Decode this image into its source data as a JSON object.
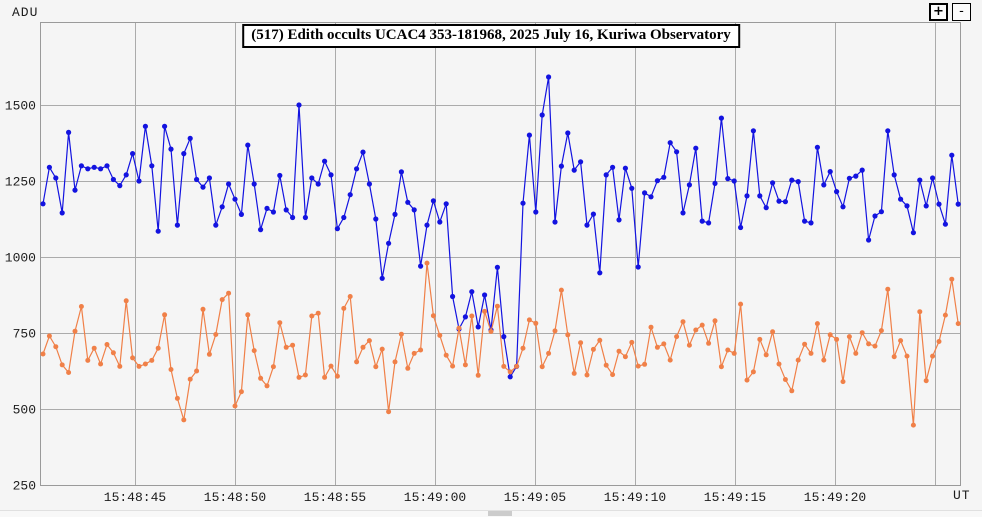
{
  "labels": {
    "y_unit": "ADU",
    "x_unit": "UT"
  },
  "controls": {
    "zoom_in": "+",
    "zoom_out": "-"
  },
  "ui_colors": {
    "background": "#f5f5f5",
    "grid": "#ababab",
    "plot_border": "#9a9a9a",
    "tick_text": "#1c1c1c",
    "title_text": "#000000",
    "title_box_bg": "#ffffff"
  },
  "chart_data": {
    "type": "line",
    "title": "(517) Edith occults UCAC4 353-181968, 2025 July 16, Kuriwa Observatory",
    "grid": true,
    "legend": "none",
    "y_axis": {
      "unit": "ADU",
      "ticks": [
        250,
        500,
        750,
        1000,
        1250,
        1500
      ],
      "range": [
        250,
        1773
      ]
    },
    "x_axis": {
      "unit": "UT",
      "note_time_encoding": "x values are seconds after 15:48:00 UT",
      "start_s": 40.4,
      "step_s": 0.32,
      "range_s": [
        40.25,
        86.25
      ],
      "ticks": [
        {
          "s": 45,
          "label": "15:48:45"
        },
        {
          "s": 50,
          "label": "15:48:50"
        },
        {
          "s": 55,
          "label": "15:48:55"
        },
        {
          "s": 60,
          "label": "15:49:00"
        },
        {
          "s": 65,
          "label": "15:49:05"
        },
        {
          "s": 70,
          "label": "15:49:10"
        },
        {
          "s": 75,
          "label": "15:49:15"
        },
        {
          "s": 80,
          "label": "15:49:20"
        },
        {
          "s": 85,
          "label": ""
        }
      ]
    },
    "series": [
      {
        "name": "target-star-occulted",
        "color": "#1313e0",
        "marker_radius": 2.6,
        "values": [
          1175,
          1295,
          1260,
          1145,
          1410,
          1220,
          1300,
          1290,
          1295,
          1290,
          1300,
          1255,
          1235,
          1270,
          1340,
          1250,
          1430,
          1300,
          1085,
          1430,
          1355,
          1105,
          1340,
          1390,
          1255,
          1230,
          1260,
          1105,
          1165,
          1240,
          1190,
          1140,
          1368,
          1240,
          1090,
          1160,
          1148,
          1268,
          1155,
          1130,
          1500,
          1130,
          1260,
          1240,
          1315,
          1270,
          1093,
          1130,
          1205,
          1290,
          1345,
          1240,
          1125,
          930,
          1045,
          1140,
          1280,
          1180,
          1155,
          970,
          1105,
          1185,
          1115,
          1175,
          870,
          763,
          803,
          886,
          770,
          875,
          760,
          966,
          738,
          606,
          640,
          1177,
          1401,
          1148,
          1467,
          1592,
          1115,
          1299,
          1408,
          1286,
          1313,
          1105,
          1141,
          948,
          1270,
          1295,
          1122,
          1292,
          1226,
          967,
          1211,
          1198,
          1251,
          1262,
          1376,
          1346,
          1145,
          1237,
          1358,
          1118,
          1112,
          1242,
          1457,
          1258,
          1250,
          1097,
          1201,
          1415,
          1201,
          1162,
          1244,
          1184,
          1182,
          1253,
          1248,
          1118,
          1112,
          1361,
          1237,
          1281,
          1215,
          1165,
          1259,
          1266,
          1286,
          1056,
          1135,
          1149,
          1415,
          1270,
          1190,
          1168,
          1080,
          1253,
          1168,
          1260,
          1174,
          1108,
          1335,
          1174
        ]
      },
      {
        "name": "comparison-star",
        "color": "#f08048",
        "marker_radius": 2.5,
        "values": [
          681,
          740,
          705,
          645,
          620,
          756,
          837,
          660,
          700,
          648,
          712,
          685,
          640,
          856,
          668,
          640,
          648,
          660,
          700,
          810,
          630,
          535,
          464,
          598,
          625,
          828,
          680,
          745,
          860,
          881,
          510,
          557,
          810,
          692,
          601,
          576,
          639,
          784,
          703,
          710,
          604,
          612,
          806,
          815,
          604,
          641,
          608,
          831,
          870,
          655,
          703,
          725,
          639,
          697,
          491,
          655,
          746,
          634,
          683,
          694,
          980,
          807,
          742,
          677,
          641,
          766,
          645,
          806,
          611,
          821,
          755,
          838,
          640,
          622,
          640,
          700,
          793,
          782,
          639,
          683,
          757,
          891,
          744,
          617,
          718,
          612,
          696,
          726,
          644,
          613,
          690,
          672,
          719,
          641,
          647,
          769,
          703,
          714,
          661,
          738,
          787,
          710,
          760,
          776,
          716,
          790,
          639,
          694,
          683,
          845,
          595,
          622,
          729,
          678,
          754,
          648,
          597,
          560,
          661,
          713,
          683,
          781,
          661,
          744,
          729,
          590,
          738,
          683,
          751,
          714,
          707,
          758,
          894,
          672,
          725,
          674,
          447,
          820,
          593,
          674,
          722,
          809,
          927,
          781
        ]
      }
    ]
  }
}
